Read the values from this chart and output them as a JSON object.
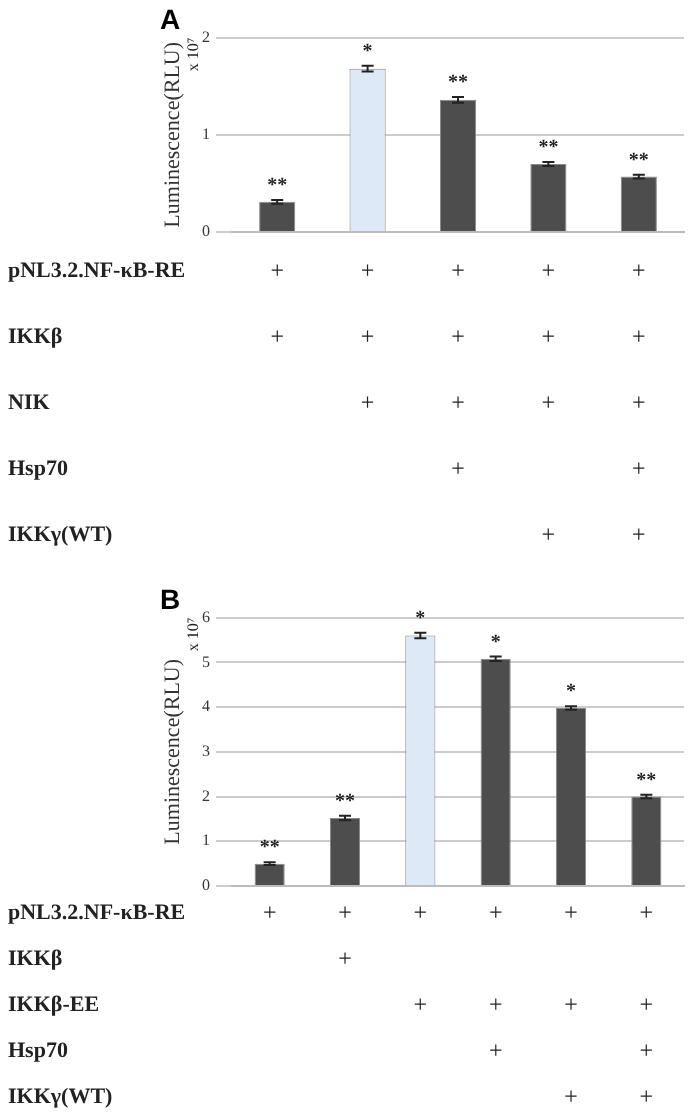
{
  "chart_data": [
    {
      "type": "bar",
      "title": "A",
      "ylabel": "Luminescence(RLU)",
      "annotations": [
        "x 10⁷",
        "pNL3.2.NF-κB-RE\t+\t+\t+\t+\t+",
        "IKKβ\t+\t+\t+\t+\t+",
        "NIK\t\t+\t+\t+\t+",
        "Hsp70\t\t\t+\t\t+",
        "IKKγ(WT)\t\t\t\t+\t+"
      ],
      "categories": [
        null,
        null,
        null,
        null,
        null
      ],
      "values": [
        0.31,
        1.68,
        1.36,
        0.7,
        0.57
      ],
      "colors": [
        "#4d4d4d",
        "#dde9f6",
        "#4d4d4d",
        "#4d4d4d",
        "#4d4d4d"
      ],
      "errors": [
        0.02,
        0.03,
        0.03,
        0.02,
        0.02
      ],
      "value_labels": [
        "**",
        "*",
        "**",
        "**",
        "**"
      ],
      "ylim": [
        0,
        2
      ],
      "yticks": [
        0,
        1,
        2
      ],
      "grid": "y"
    },
    {
      "type": "bar",
      "title": "B",
      "ylabel": "Luminescence(RLU)",
      "annotations": [
        "x 10⁷",
        "pNL3.2.NF-κB-RE\t+\t+\t+\t+\t+\t+",
        "IKKβ\t\t+\t\t\t\t",
        "IKKβ-EE\t\t\t+\t+\t+\t+",
        "Hsp70\t\t\t\t+\t\t+",
        "IKKγ(WT)\t\t\t\t\t+\t+"
      ],
      "categories": [
        null,
        null,
        null,
        null,
        null,
        null
      ],
      "values": [
        0.5,
        1.52,
        5.6,
        5.08,
        3.98,
        2.0
      ],
      "colors": [
        "#4d4d4d",
        "#4d4d4d",
        "#dde9f6",
        "#4d4d4d",
        "#4d4d4d",
        "#4d4d4d"
      ],
      "errors": [
        0.03,
        0.05,
        0.06,
        0.05,
        0.04,
        0.04
      ],
      "value_labels": [
        "**",
        "**",
        "*",
        "*",
        "*",
        "**"
      ],
      "ylim": [
        0,
        6
      ],
      "yticks": [
        0,
        1,
        2,
        3,
        4,
        5,
        6
      ],
      "grid": "y"
    }
  ]
}
